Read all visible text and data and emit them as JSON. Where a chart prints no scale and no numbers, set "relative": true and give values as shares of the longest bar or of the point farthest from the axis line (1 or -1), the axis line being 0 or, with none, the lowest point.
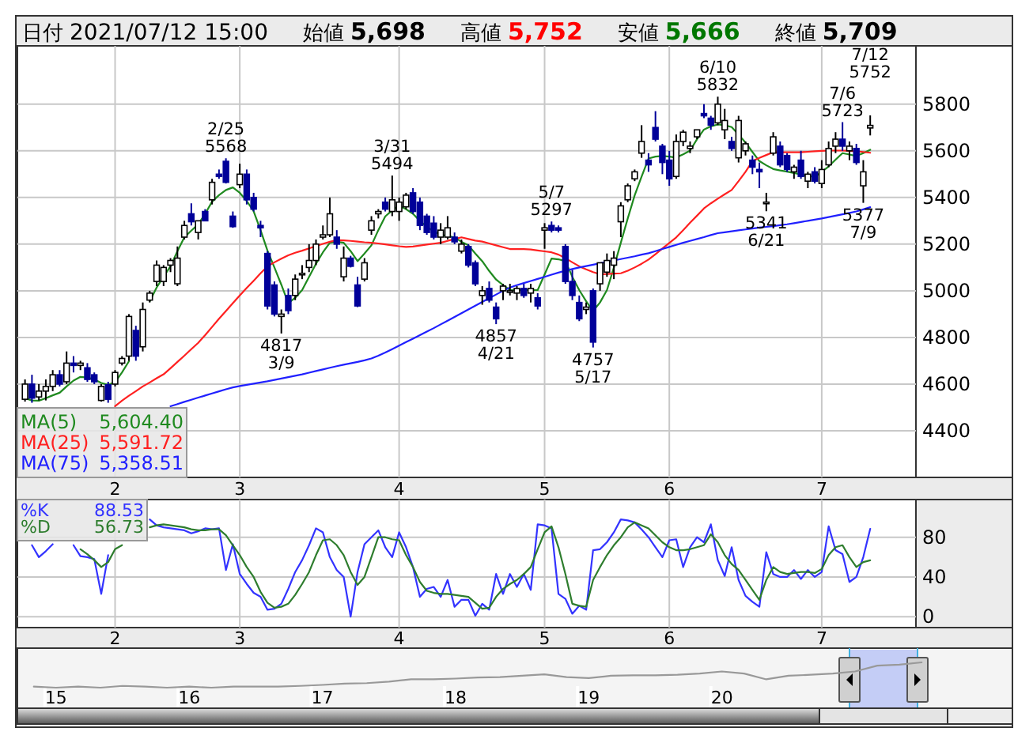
{
  "chart_data": [
    {
      "type": "other",
      "annotations": [
        "日付",
        "2021/07/12 15:00",
        "始値",
        "5,698",
        "高値",
        "5,752",
        "安値",
        "5,666",
        "終値",
        "5,709"
      ]
    },
    {
      "type": "candlestick",
      "categories": [
        null,
        null,
        null,
        null,
        null,
        null,
        null,
        null,
        null,
        null,
        null,
        null,
        null,
        "2",
        null,
        null,
        null,
        null,
        null,
        null,
        null,
        null,
        null,
        null,
        null,
        null,
        null,
        null,
        null,
        null,
        null,
        "3",
        null,
        null,
        null,
        null,
        null,
        null,
        null,
        null,
        null,
        null,
        null,
        null,
        null,
        null,
        null,
        null,
        null,
        null,
        null,
        null,
        null,
        null,
        "4",
        null,
        null,
        null,
        null,
        null,
        null,
        null,
        null,
        null,
        null,
        null,
        null,
        null,
        null,
        null,
        null,
        null,
        null,
        null,
        null,
        "5",
        null,
        null,
        null,
        null,
        null,
        null,
        null,
        null,
        null,
        null,
        null,
        null,
        null,
        null,
        null,
        null,
        null,
        "6",
        null,
        null,
        null,
        null,
        null,
        null,
        null,
        null,
        null,
        null,
        null,
        null,
        null,
        null,
        null,
        null,
        null,
        null,
        null,
        null,
        null,
        "7",
        null,
        null,
        null,
        null,
        null,
        null,
        null
      ],
      "ohlc": [
        [
          4535,
          4620,
          4525,
          4600
        ],
        [
          4600,
          4640,
          4520,
          4540
        ],
        [
          4545,
          4600,
          4530,
          4570
        ],
        [
          4570,
          4620,
          4530,
          4590
        ],
        [
          4590,
          4660,
          4570,
          4640
        ],
        [
          4640,
          4660,
          4590,
          4600
        ],
        [
          4610,
          4740,
          4600,
          4690
        ],
        [
          4690,
          4720,
          4650,
          4680
        ],
        [
          4680,
          4700,
          4660,
          4690
        ],
        [
          4670,
          4690,
          4610,
          4620
        ],
        [
          4640,
          4650,
          4600,
          4610
        ],
        [
          4530,
          4600,
          4525,
          4590
        ],
        [
          4597,
          4610,
          4520,
          4535
        ],
        [
          4600,
          4660,
          4590,
          4650
        ],
        [
          4690,
          4720,
          4680,
          4710
        ],
        [
          4720,
          4900,
          4700,
          4890
        ],
        [
          4830,
          4850,
          4700,
          4720
        ],
        [
          4760,
          4950,
          4740,
          4920
        ],
        [
          4960,
          5000,
          4950,
          4990
        ],
        [
          5040,
          5130,
          5020,
          5110
        ],
        [
          5040,
          5110,
          5020,
          5100
        ],
        [
          5110,
          5140,
          5080,
          5130
        ],
        [
          5030,
          5190,
          5020,
          5140
        ],
        [
          5230,
          5300,
          5220,
          5280
        ],
        [
          5330,
          5375,
          5280,
          5296
        ],
        [
          5250,
          5300,
          5220,
          5300
        ],
        [
          5340,
          5350,
          5300,
          5300
        ],
        [
          5390,
          5480,
          5370,
          5465
        ],
        [
          5500,
          5520,
          5480,
          5490
        ],
        [
          5555,
          5568,
          5460,
          5465
        ],
        [
          5320,
          5340,
          5270,
          5275
        ],
        [
          5455,
          5545,
          5440,
          5500
        ],
        [
          5500,
          5520,
          5370,
          5390
        ],
        [
          5400,
          5420,
          5340,
          5350
        ],
        [
          5280,
          5300,
          5230,
          5270
        ],
        [
          5160,
          5170,
          4920,
          4935
        ],
        [
          5025,
          5040,
          4890,
          4900
        ],
        [
          4890,
          4920,
          4817,
          4900
        ],
        [
          4980,
          5010,
          4900,
          4915
        ],
        [
          4980,
          5070,
          4960,
          5050
        ],
        [
          5070,
          5110,
          5050,
          5075
        ],
        [
          5100,
          5200,
          5080,
          5130
        ],
        [
          5130,
          5220,
          5110,
          5200
        ],
        [
          5230,
          5280,
          5220,
          5240
        ],
        [
          5240,
          5400,
          5230,
          5330
        ],
        [
          5230,
          5260,
          5180,
          5200
        ],
        [
          5060,
          5190,
          5040,
          5140
        ],
        [
          5140,
          5150,
          5100,
          5105
        ],
        [
          5025,
          5060,
          4930,
          4935
        ],
        [
          5050,
          5140,
          5040,
          5120
        ],
        [
          5260,
          5320,
          5240,
          5300
        ],
        [
          5330,
          5350,
          5310,
          5340
        ],
        [
          5380,
          5400,
          5340,
          5350
        ],
        [
          5340,
          5494,
          5320,
          5390
        ],
        [
          5340,
          5400,
          5300,
          5380
        ],
        [
          5360,
          5420,
          5350,
          5410
        ],
        [
          5420,
          5440,
          5330,
          5340
        ],
        [
          5380,
          5400,
          5260,
          5280
        ],
        [
          5320,
          5330,
          5240,
          5250
        ],
        [
          5290,
          5320,
          5220,
          5230
        ],
        [
          5230,
          5290,
          5200,
          5260
        ],
        [
          5230,
          5320,
          5220,
          5270
        ],
        [
          5230,
          5250,
          5200,
          5210
        ],
        [
          5170,
          5220,
          5160,
          5200
        ],
        [
          5190,
          5200,
          5100,
          5110
        ],
        [
          5120,
          5130,
          5020,
          5030
        ],
        [
          4980,
          5020,
          4940,
          5000
        ],
        [
          5010,
          5040,
          4950,
          4960
        ],
        [
          4930,
          4950,
          4857,
          4880
        ],
        [
          5000,
          5030,
          4960,
          5020
        ],
        [
          5000,
          5030,
          4980,
          5000
        ],
        [
          4990,
          5020,
          4960,
          5010
        ],
        [
          5010,
          5030,
          4970,
          4980
        ],
        [
          4990,
          5030,
          4950,
          5010
        ],
        [
          4970,
          4990,
          4920,
          4935
        ],
        [
          5260,
          5290,
          5180,
          5270
        ],
        [
          5280,
          5297,
          5250,
          5260
        ],
        [
          5270,
          5280,
          5250,
          5260
        ],
        [
          5190,
          5200,
          5030,
          5040
        ],
        [
          5040,
          5090,
          4960,
          4980
        ],
        [
          4950,
          4980,
          4870,
          4880
        ],
        [
          4920,
          4950,
          4900,
          4930
        ],
        [
          5000,
          5010,
          4757,
          4780
        ],
        [
          5030,
          5120,
          5000,
          5120
        ],
        [
          5080,
          5160,
          5060,
          5130
        ],
        [
          5110,
          5170,
          5050,
          5140
        ],
        [
          5296,
          5380,
          5230,
          5364
        ],
        [
          5390,
          5460,
          5380,
          5450
        ],
        [
          5480,
          5520,
          5470,
          5510
        ],
        [
          5590,
          5710,
          5570,
          5640
        ],
        [
          5560,
          5590,
          5510,
          5540
        ],
        [
          5700,
          5770,
          5640,
          5650
        ],
        [
          5620,
          5630,
          5500,
          5550
        ],
        [
          5560,
          5600,
          5450,
          5480
        ],
        [
          5490,
          5670,
          5480,
          5640
        ],
        [
          5640,
          5690,
          5620,
          5680
        ],
        [
          5610,
          5640,
          5590,
          5620
        ],
        [
          5660,
          5690,
          5650,
          5690
        ],
        [
          5760,
          5800,
          5740,
          5750
        ],
        [
          5740,
          5750,
          5690,
          5710
        ],
        [
          5720,
          5832,
          5710,
          5800
        ],
        [
          5690,
          5780,
          5650,
          5730
        ],
        [
          5640,
          5660,
          5600,
          5610
        ],
        [
          5570,
          5750,
          5550,
          5730
        ],
        [
          5600,
          5640,
          5580,
          5630
        ],
        [
          5560,
          5580,
          5500,
          5530
        ],
        [
          5520,
          5550,
          5440,
          5510
        ],
        [
          5380,
          5420,
          5341,
          5380
        ],
        [
          5590,
          5680,
          5580,
          5660
        ],
        [
          5620,
          5640,
          5530,
          5540
        ],
        [
          5580,
          5590,
          5510,
          5520
        ],
        [
          5510,
          5540,
          5480,
          5530
        ],
        [
          5560,
          5600,
          5480,
          5490
        ],
        [
          5470,
          5510,
          5440,
          5500
        ],
        [
          5510,
          5530,
          5460,
          5470
        ],
        [
          5460,
          5560,
          5440,
          5520
        ],
        [
          5540,
          5640,
          5530,
          5610
        ],
        [
          5620,
          5680,
          5590,
          5650
        ],
        [
          5650,
          5723,
          5600,
          5620
        ],
        [
          5600,
          5640,
          5560,
          5620
        ],
        [
          5610,
          5630,
          5540,
          5550
        ],
        [
          5450,
          5560,
          5377,
          5510
        ],
        [
          5698,
          5752,
          5666,
          5709
        ]
      ],
      "series": [
        {
          "type": "line",
          "name": "MA(5)",
          "color": "#1f8a1f",
          "values": [
            4540,
            4530,
            4529,
            4540,
            4552,
            4563,
            4590,
            4615,
            4631,
            4628,
            4620,
            4605,
            4597,
            4608,
            4650,
            4698,
            null,
            null,
            4955,
            5014,
            5060,
            5105,
            5170,
            5229,
            5258,
            5285,
            5330,
            5382,
            5410,
            5432,
            5443,
            5420,
            5385,
            5341,
            5260,
            5172,
            5100,
            5026,
            4947,
            4970,
            5003,
            5060,
            5116,
            5165,
            5206,
            5210,
            5206,
            5170,
            5127,
            5160,
            5195,
            5260,
            5319,
            5345,
            5364,
            5350,
            5330,
            5300,
            5274,
            5255,
            5240,
            5235,
            5229,
            5210,
            5195,
            5160,
            5127,
            5085,
            5048,
            5025,
            5003,
            5003,
            5003,
            5003,
            5003,
            5070,
            5138,
            5135,
            5127,
            5060,
            5003,
            4955,
            4913,
            4950,
            5003,
            5100,
            5206,
            5310,
            5409,
            5490,
            5567,
            5575,
            5578,
            5575,
            5571,
            5585,
            5601,
            5650,
            5691,
            5705,
            5713,
            5710,
            5702,
            5670,
            5635,
            5595,
            5556,
            5538,
            5522,
            5516,
            5511,
            5505,
            5499,
            5493,
            5488,
            5510,
            5533,
            5562,
            5590,
            5584,
            5578,
            5590,
            5604.4
          ]
        },
        {
          "type": "line",
          "name": "MA(25)",
          "color": "#ff2020",
          "values": [
            null,
            null,
            null,
            null,
            null,
            null,
            null,
            null,
            null,
            null,
            null,
            null,
            null,
            4505,
            4529,
            4550,
            4570,
            4590,
            4607,
            4625,
            4642,
            4668,
            4695,
            4722,
            4750,
            4777,
            4810,
            4845,
            4880,
            4913,
            4947,
            4980,
            5012,
            5043,
            5075,
            5105,
            5122,
            5138,
            5152,
            5163,
            5172,
            5182,
            5192,
            5201,
            5210,
            5217,
            5216,
            5214,
            5211,
            5208,
            5206,
            5203,
            5199,
            5195,
            5191,
            5188,
            5190,
            5194,
            5198,
            5202,
            5206,
            5214,
            5222,
            5229,
            5222,
            5215,
            5211,
            5203,
            5195,
            5187,
            5179,
            5179,
            5179,
            5177,
            5173,
            5169,
            5165,
            5155,
            5140,
            5122,
            5105,
            5092,
            5080,
            5071,
            5072,
            5074,
            5075,
            5086,
            5100,
            5116,
            5134,
            5157,
            5181,
            5205,
            5229,
            5260,
            5292,
            5322,
            5353,
            5375,
            5395,
            5414,
            5432,
            5470,
            5510,
            5556,
            5570,
            5582,
            5594,
            5594,
            5594,
            5594,
            5594,
            5596,
            5598,
            5600,
            5601,
            5601,
            5601,
            5600,
            5598,
            5595,
            5591.72
          ]
        },
        {
          "type": "line",
          "name": "MA(75)",
          "color": "#2020ff",
          "values": [
            null,
            null,
            null,
            null,
            null,
            null,
            null,
            null,
            null,
            null,
            null,
            null,
            null,
            null,
            null,
            null,
            null,
            null,
            null,
            null,
            null,
            4505,
            4514,
            4524,
            4533,
            4542,
            4551,
            4560,
            4569,
            4578,
            4586,
            4592,
            4597,
            4602,
            4607,
            4612,
            4618,
            4624,
            4630,
            4636,
            4642,
            4649,
            4656,
            4663,
            4670,
            4677,
            4683,
            4689,
            4695,
            4702,
            4710,
            4722,
            4735,
            4750,
            4765,
            4780,
            4795,
            4810,
            4825,
            4840,
            4856,
            4872,
            4888,
            4904,
            4920,
            4936,
            4952,
            4968,
            4984,
            5000,
            5014,
            5024,
            5033,
            5042,
            5051,
            5060,
            5069,
            5078,
            5086,
            5093,
            5100,
            5106,
            5112,
            5118,
            5124,
            5130,
            5136,
            5142,
            5148,
            5155,
            5161,
            5170,
            5179,
            5188,
            5197,
            5206,
            5214,
            5222,
            5230,
            5239,
            5247,
            5251,
            5255,
            5259,
            5263,
            5267,
            5271,
            5274,
            5277,
            5281,
            5285,
            5290,
            5295,
            5300,
            5305,
            5310,
            5316,
            5322,
            5328,
            5334,
            5340,
            5349,
            5358.51
          ]
        }
      ],
      "ylim": [
        4200,
        6050
      ],
      "yticks": [
        4400,
        4600,
        4800,
        5000,
        5200,
        5400,
        5600,
        5800
      ],
      "grid": true,
      "legend": "bottom left",
      "annotations": [
        {
          "text": "2/25\n5568",
          "y": 5568
        },
        {
          "text": "4817\n3/9",
          "y": 4817
        },
        {
          "text": "3/31\n5494",
          "y": 5494
        },
        {
          "text": "4857\n4/21",
          "y": 4857
        },
        {
          "text": "5/7\n5297",
          "y": 5297
        },
        {
          "text": "4757\n5/17",
          "y": 4757
        },
        {
          "text": "6/10\n5832",
          "y": 5832
        },
        {
          "text": "5341\n6/21",
          "y": 5341
        },
        {
          "text": "7/6\n5723",
          "y": 5723
        },
        {
          "text": "5377\n7/9",
          "y": 5377
        },
        {
          "text": "7/12\n5752",
          "y": 5752
        },
        "5,604.40",
        "5,591.72",
        "5,358.51"
      ]
    },
    {
      "type": "line",
      "categories": [
        null,
        null,
        null,
        null,
        null,
        null,
        null,
        null,
        null,
        null,
        null,
        null,
        null,
        "2",
        null,
        null,
        null,
        null,
        null,
        null,
        null,
        null,
        null,
        null,
        null,
        null,
        null,
        null,
        null,
        null,
        null,
        "3",
        null,
        null,
        null,
        null,
        null,
        null,
        null,
        null,
        null,
        null,
        null,
        null,
        null,
        null,
        null,
        null,
        null,
        null,
        null,
        null,
        null,
        null,
        "4",
        null,
        null,
        null,
        null,
        null,
        null,
        null,
        null,
        null,
        null,
        null,
        null,
        null,
        null,
        null,
        null,
        null,
        null,
        null,
        null,
        "5",
        null,
        null,
        null,
        null,
        null,
        null,
        null,
        null,
        null,
        null,
        null,
        null,
        null,
        null,
        null,
        null,
        null,
        "6",
        null,
        null,
        null,
        null,
        null,
        null,
        null,
        null,
        null,
        null,
        null,
        null,
        null,
        null,
        null,
        null,
        null,
        null,
        null,
        null,
        null,
        "7",
        null,
        null,
        null,
        null,
        null,
        null,
        null
      ],
      "series": [
        {
          "name": "%K",
          "color": "#3333ff",
          "values": [
            null,
            72,
            60,
            66,
            73,
            null,
            null,
            72,
            61,
            60,
            58,
            23,
            62,
            null,
            null,
            null,
            null,
            null,
            98,
            92,
            90,
            89,
            88,
            87,
            84,
            86,
            89,
            88,
            89,
            47,
            73,
            43,
            33,
            24,
            20,
            7,
            8,
            13,
            28,
            45,
            57,
            72,
            89,
            85,
            60,
            47,
            40,
            0,
            45,
            73,
            80,
            87,
            70,
            60,
            85,
            70,
            50,
            20,
            28,
            30,
            20,
            37,
            10,
            17,
            17,
            1,
            13,
            7,
            43,
            23,
            43,
            30,
            43,
            27,
            93,
            92,
            89,
            23,
            18,
            3,
            11,
            7,
            67,
            68,
            75,
            85,
            98,
            97,
            95,
            88,
            80,
            70,
            60,
            77,
            78,
            50,
            70,
            80,
            75,
            93,
            57,
            41,
            70,
            37,
            21,
            15,
            10,
            65,
            43,
            40,
            40,
            47,
            38,
            47,
            40,
            45,
            91,
            67,
            63,
            35,
            40,
            60,
            88.53
          ]
        },
        {
          "name": "%D",
          "color": "#2e7d2e",
          "values": [
            null,
            null,
            null,
            null,
            null,
            null,
            null,
            null,
            68,
            63,
            57,
            50,
            55,
            68,
            72,
            null,
            null,
            null,
            90,
            92,
            93,
            92,
            91,
            90,
            88,
            87,
            87,
            88,
            88,
            82,
            72,
            62,
            50,
            40,
            25,
            14,
            9,
            10,
            13,
            22,
            33,
            45,
            62,
            77,
            78,
            72,
            62,
            45,
            32,
            40,
            60,
            80,
            80,
            78,
            77,
            62,
            50,
            35,
            26,
            24,
            23,
            23,
            22,
            21,
            20,
            14,
            8,
            9,
            20,
            28,
            33,
            37,
            43,
            50,
            68,
            85,
            91,
            70,
            43,
            13,
            11,
            10,
            37,
            50,
            62,
            72,
            80,
            90,
            95,
            92,
            89,
            82,
            75,
            70,
            67,
            67,
            68,
            70,
            72,
            83,
            75,
            62,
            53,
            47,
            37,
            27,
            17,
            37,
            50,
            45,
            43,
            44,
            45,
            45,
            44,
            48,
            62,
            70,
            72,
            60,
            50,
            55,
            56.73
          ]
        }
      ],
      "ylim": [
        -11,
        118
      ],
      "yticks": [
        0,
        40,
        80
      ],
      "grid": true,
      "legend": "top left",
      "annotations": [
        "88.53",
        "56.73"
      ]
    },
    {
      "type": "line",
      "relative": true,
      "color": "#999999",
      "categories": [
        null,
        "15",
        null,
        null,
        null,
        null,
        null,
        "16",
        null,
        null,
        null,
        null,
        null,
        "17",
        null,
        null,
        null,
        null,
        null,
        "18",
        null,
        null,
        null,
        null,
        null,
        "19",
        null,
        null,
        null,
        null,
        null,
        "20",
        null,
        null,
        null,
        null,
        null,
        null,
        null,
        null,
        null
      ],
      "values": [
        0.04,
        0,
        0.04,
        0,
        0.07,
        0.04,
        0,
        0.04,
        0,
        0.04,
        0.04,
        0.04,
        0.07,
        0.11,
        0.16,
        0.18,
        0.24,
        0.33,
        0.33,
        0.36,
        0.4,
        0.42,
        0.47,
        0.53,
        0.42,
        0.38,
        0.47,
        0.49,
        0.49,
        0.51,
        0.56,
        0.64,
        0.56,
        0.33,
        0.47,
        0.51,
        0.56,
        0.64,
        0.87,
        0.91,
        1
      ]
    }
  ]
}
